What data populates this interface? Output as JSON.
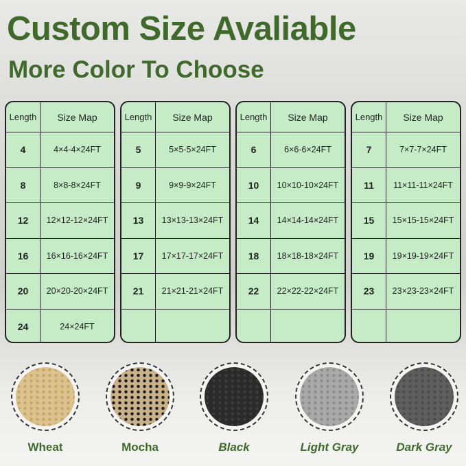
{
  "title": "Custom Size Avaliable",
  "subtitle": "More Color To Choose",
  "table_headers": {
    "length": "Length",
    "size_map": "Size Map"
  },
  "tables": [
    {
      "rows": [
        [
          "4",
          "4×4-4×24FT"
        ],
        [
          "8",
          "8×8-8×24FT"
        ],
        [
          "12",
          "12×12-12×24FT"
        ],
        [
          "16",
          "16×16-16×24FT"
        ],
        [
          "20",
          "20×20-20×24FT"
        ],
        [
          "24",
          "24×24FT"
        ]
      ]
    },
    {
      "rows": [
        [
          "5",
          "5×5-5×24FT"
        ],
        [
          "9",
          "9×9-9×24FT"
        ],
        [
          "13",
          "13×13-13×24FT"
        ],
        [
          "17",
          "17×17-17×24FT"
        ],
        [
          "21",
          "21×21-21×24FT"
        ],
        [
          "",
          ""
        ]
      ]
    },
    {
      "rows": [
        [
          "6",
          "6×6-6×24FT"
        ],
        [
          "10",
          "10×10-10×24FT"
        ],
        [
          "14",
          "14×14-14×24FT"
        ],
        [
          "18",
          "18×18-18×24FT"
        ],
        [
          "22",
          "22×22-22×24FT"
        ],
        [
          "",
          ""
        ]
      ]
    },
    {
      "rows": [
        [
          "7",
          "7×7-7×24FT"
        ],
        [
          "11",
          "11×11-11×24FT"
        ],
        [
          "15",
          "15×15-15×24FT"
        ],
        [
          "19",
          "19×19-19×24FT"
        ],
        [
          "23",
          "23×23-23×24FT"
        ],
        [
          "",
          ""
        ]
      ]
    }
  ],
  "colors": [
    {
      "label": "Wheat",
      "italic": false,
      "swatch": "#dcc28e",
      "pattern": "#c9a866"
    },
    {
      "label": "Mocha",
      "italic": false,
      "swatch": "#c9b18a",
      "pattern": "#1e1e1e"
    },
    {
      "label": "Black",
      "italic": true,
      "swatch": "#2a2a2a",
      "pattern": "#3a3a3a"
    },
    {
      "label": "Light Gray",
      "italic": true,
      "swatch": "#a9a9a9",
      "pattern": "#8e8e8e"
    },
    {
      "label": "Dark Gray",
      "italic": true,
      "swatch": "#5e5e5e",
      "pattern": "#4c4c4c"
    }
  ],
  "accent": "#3f6a2b",
  "table_bg": "#c5ecc6"
}
